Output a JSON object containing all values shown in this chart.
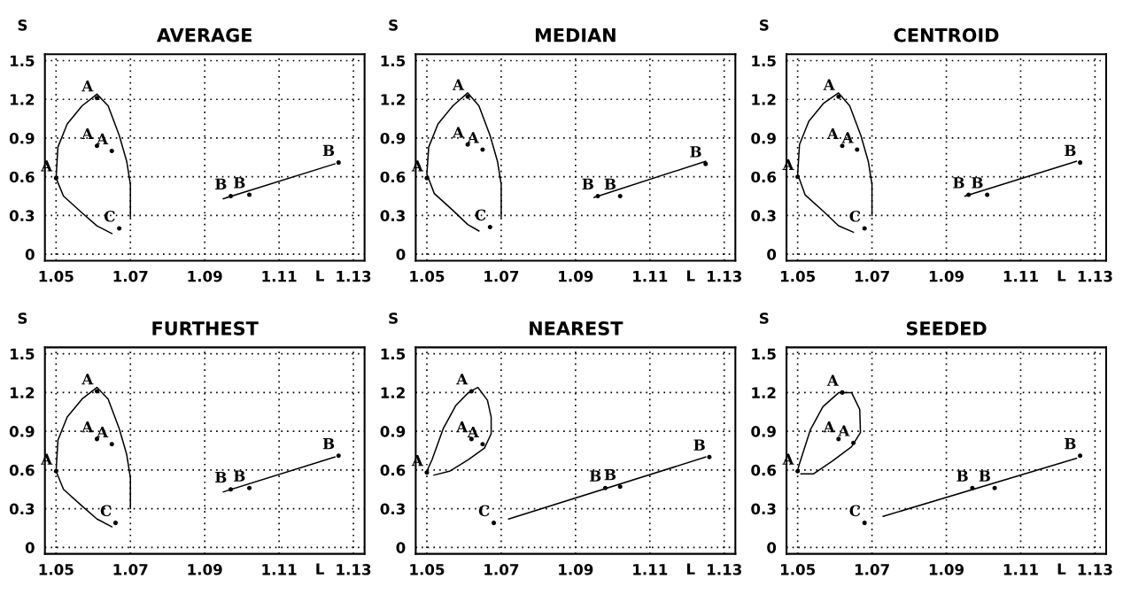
{
  "chart_data": [
    {
      "type": "scatter",
      "title": "AVERAGE",
      "xlabel": "L",
      "ylabel": "S",
      "xlim": [
        1.047,
        1.133
      ],
      "ylim": [
        -0.05,
        1.55
      ],
      "xticks": [
        1.05,
        1.07,
        1.09,
        1.11,
        1.13
      ],
      "yticks": [
        0,
        0.3,
        0.6,
        0.9,
        1.2,
        1.5
      ],
      "grid": true,
      "series": [
        {
          "type": "line",
          "color": "#000000",
          "x": [
            1.07,
            1.07,
            1.069,
            1.067,
            1.064,
            1.061,
            1.057,
            1.053,
            1.0505,
            1.05,
            1.052,
            1.057,
            1.061,
            1.065
          ],
          "values": [
            0.29,
            0.54,
            0.72,
            0.92,
            1.15,
            1.24,
            1.15,
            1.01,
            0.83,
            0.59,
            0.45,
            0.32,
            0.22,
            0.16
          ]
        },
        {
          "type": "line",
          "color": "#000000",
          "x": [
            1.095,
            1.125
          ],
          "values": [
            0.43,
            0.7
          ]
        },
        {
          "name": "A",
          "color": "#000000",
          "x": [
            1.061,
            1.061,
            1.065,
            1.05
          ],
          "values": [
            1.21,
            0.84,
            0.8,
            0.59
          ]
        },
        {
          "name": "B",
          "color": "#000000",
          "x": [
            1.097,
            1.102,
            1.126
          ],
          "values": [
            0.45,
            0.46,
            0.71
          ]
        },
        {
          "name": "C",
          "color": "#000000",
          "x": [
            1.067
          ],
          "values": [
            0.2
          ]
        }
      ]
    },
    {
      "type": "scatter",
      "title": "MEDIAN",
      "xlabel": "L",
      "ylabel": "S",
      "xlim": [
        1.047,
        1.133
      ],
      "ylim": [
        -0.05,
        1.55
      ],
      "xticks": [
        1.05,
        1.07,
        1.09,
        1.11,
        1.13
      ],
      "yticks": [
        0,
        0.3,
        0.6,
        0.9,
        1.2,
        1.5
      ],
      "grid": true,
      "series": [
        {
          "type": "line",
          "color": "#000000",
          "x": [
            1.07,
            1.07,
            1.069,
            1.067,
            1.064,
            1.061,
            1.057,
            1.053,
            1.0505,
            1.05,
            1.052,
            1.057,
            1.061,
            1.064
          ],
          "values": [
            0.29,
            0.54,
            0.72,
            0.92,
            1.15,
            1.25,
            1.15,
            1.01,
            0.83,
            0.62,
            0.47,
            0.34,
            0.23,
            0.18
          ]
        },
        {
          "type": "line",
          "color": "#000000",
          "x": [
            1.095,
            1.125
          ],
          "values": [
            0.44,
            0.72
          ]
        },
        {
          "name": "A",
          "color": "#000000",
          "x": [
            1.061,
            1.061,
            1.065,
            1.05
          ],
          "values": [
            1.22,
            0.85,
            0.81,
            0.59
          ]
        },
        {
          "name": "B",
          "color": "#000000",
          "x": [
            1.096,
            1.102,
            1.125
          ],
          "values": [
            0.45,
            0.45,
            0.7
          ]
        },
        {
          "name": "C",
          "color": "#000000",
          "x": [
            1.067
          ],
          "values": [
            0.21
          ]
        }
      ]
    },
    {
      "type": "scatter",
      "title": "CENTROID",
      "xlabel": "L",
      "ylabel": "S",
      "xlim": [
        1.047,
        1.133
      ],
      "ylim": [
        -0.05,
        1.55
      ],
      "xticks": [
        1.05,
        1.07,
        1.09,
        1.11,
        1.13
      ],
      "yticks": [
        0,
        0.3,
        0.6,
        0.9,
        1.2,
        1.5
      ],
      "grid": true,
      "series": [
        {
          "type": "line",
          "color": "#000000",
          "x": [
            1.07,
            1.07,
            1.069,
            1.067,
            1.064,
            1.061,
            1.057,
            1.053,
            1.0505,
            1.05,
            1.052,
            1.057,
            1.061,
            1.065
          ],
          "values": [
            0.3,
            0.54,
            0.72,
            0.92,
            1.15,
            1.25,
            1.17,
            1.03,
            0.85,
            0.62,
            0.46,
            0.33,
            0.22,
            0.17
          ]
        },
        {
          "type": "line",
          "color": "#000000",
          "x": [
            1.095,
            1.125
          ],
          "values": [
            0.45,
            0.72
          ]
        },
        {
          "name": "A",
          "color": "#000000",
          "x": [
            1.061,
            1.062,
            1.066,
            1.05
          ],
          "values": [
            1.22,
            0.84,
            0.81,
            0.6
          ]
        },
        {
          "name": "B",
          "color": "#000000",
          "x": [
            1.096,
            1.101,
            1.126
          ],
          "values": [
            0.46,
            0.46,
            0.71
          ]
        },
        {
          "name": "C",
          "color": "#000000",
          "x": [
            1.068
          ],
          "values": [
            0.2
          ]
        }
      ]
    },
    {
      "type": "scatter",
      "title": "FURTHEST",
      "xlabel": "L",
      "ylabel": "S",
      "xlim": [
        1.047,
        1.133
      ],
      "ylim": [
        -0.05,
        1.55
      ],
      "xticks": [
        1.05,
        1.07,
        1.09,
        1.11,
        1.13
      ],
      "yticks": [
        0,
        0.3,
        0.6,
        0.9,
        1.2,
        1.5
      ],
      "grid": true,
      "series": [
        {
          "type": "line",
          "color": "#000000",
          "x": [
            1.07,
            1.07,
            1.069,
            1.067,
            1.064,
            1.061,
            1.057,
            1.053,
            1.0505,
            1.05,
            1.052,
            1.057,
            1.061,
            1.065
          ],
          "values": [
            0.3,
            0.54,
            0.72,
            0.92,
            1.15,
            1.24,
            1.15,
            1.01,
            0.83,
            0.59,
            0.45,
            0.32,
            0.22,
            0.16
          ]
        },
        {
          "type": "line",
          "color": "#000000",
          "x": [
            1.095,
            1.125
          ],
          "values": [
            0.43,
            0.7
          ]
        },
        {
          "name": "A",
          "color": "#000000",
          "x": [
            1.061,
            1.061,
            1.065,
            1.05
          ],
          "values": [
            1.21,
            0.84,
            0.8,
            0.59
          ]
        },
        {
          "name": "B",
          "color": "#000000",
          "x": [
            1.097,
            1.102,
            1.126
          ],
          "values": [
            0.45,
            0.46,
            0.71
          ]
        },
        {
          "name": "C",
          "color": "#000000",
          "x": [
            1.066
          ],
          "values": [
            0.19
          ]
        }
      ]
    },
    {
      "type": "scatter",
      "title": "NEAREST",
      "xlabel": "L",
      "ylabel": "S",
      "xlim": [
        1.047,
        1.133
      ],
      "ylim": [
        -0.05,
        1.55
      ],
      "xticks": [
        1.05,
        1.07,
        1.09,
        1.11,
        1.13
      ],
      "yticks": [
        0,
        0.3,
        0.6,
        0.9,
        1.2,
        1.5
      ],
      "grid": true,
      "series": [
        {
          "type": "line",
          "color": "#000000",
          "x": [
            1.05,
            1.0514,
            1.0544,
            1.0578,
            1.0612,
            1.0637,
            1.0663,
            1.0673,
            1.0673,
            1.0655,
            1.0612,
            1.0561,
            1.0519
          ],
          "values": [
            0.59,
            0.68,
            0.92,
            1.1,
            1.2,
            1.24,
            1.14,
            1.01,
            0.88,
            0.77,
            0.68,
            0.59,
            0.56
          ]
        },
        {
          "type": "line",
          "color": "#000000",
          "x": [
            1.072,
            1.125
          ],
          "values": [
            0.22,
            0.7
          ]
        },
        {
          "name": "A",
          "color": "#000000",
          "x": [
            1.062,
            1.062,
            1.065,
            1.05
          ],
          "values": [
            1.21,
            0.84,
            0.8,
            0.58
          ]
        },
        {
          "name": "B",
          "color": "#000000",
          "x": [
            1.098,
            1.102,
            1.126
          ],
          "values": [
            0.46,
            0.47,
            0.7
          ]
        },
        {
          "name": "C",
          "color": "#000000",
          "x": [
            1.068
          ],
          "values": [
            0.19
          ]
        }
      ]
    },
    {
      "type": "scatter",
      "title": "SEEDED",
      "xlabel": "L",
      "ylabel": "S",
      "xlim": [
        1.047,
        1.133
      ],
      "ylim": [
        -0.05,
        1.55
      ],
      "xticks": [
        1.05,
        1.07,
        1.09,
        1.11,
        1.13
      ],
      "yticks": [
        0,
        0.3,
        0.6,
        0.9,
        1.2,
        1.5
      ],
      "grid": true,
      "series": [
        {
          "type": "line",
          "color": "#000000",
          "x": [
            1.05,
            1.0504,
            1.0534,
            1.0568,
            1.0611,
            1.0645,
            1.0667,
            1.0669,
            1.0645,
            1.0594,
            1.0543,
            1.0509
          ],
          "values": [
            0.6,
            0.64,
            0.91,
            1.09,
            1.2,
            1.2,
            1.07,
            0.89,
            0.78,
            0.67,
            0.57,
            0.57
          ]
        },
        {
          "type": "line",
          "color": "#000000",
          "x": [
            1.073,
            1.125
          ],
          "values": [
            0.24,
            0.69
          ]
        },
        {
          "name": "A",
          "color": "#000000",
          "x": [
            1.062,
            1.061,
            1.065,
            1.05
          ],
          "values": [
            1.2,
            0.84,
            0.81,
            0.59
          ]
        },
        {
          "name": "B",
          "color": "#000000",
          "x": [
            1.097,
            1.103,
            1.126
          ],
          "values": [
            0.46,
            0.46,
            0.71
          ]
        },
        {
          "name": "C",
          "color": "#000000",
          "x": [
            1.068
          ],
          "values": [
            0.19
          ]
        }
      ]
    }
  ]
}
